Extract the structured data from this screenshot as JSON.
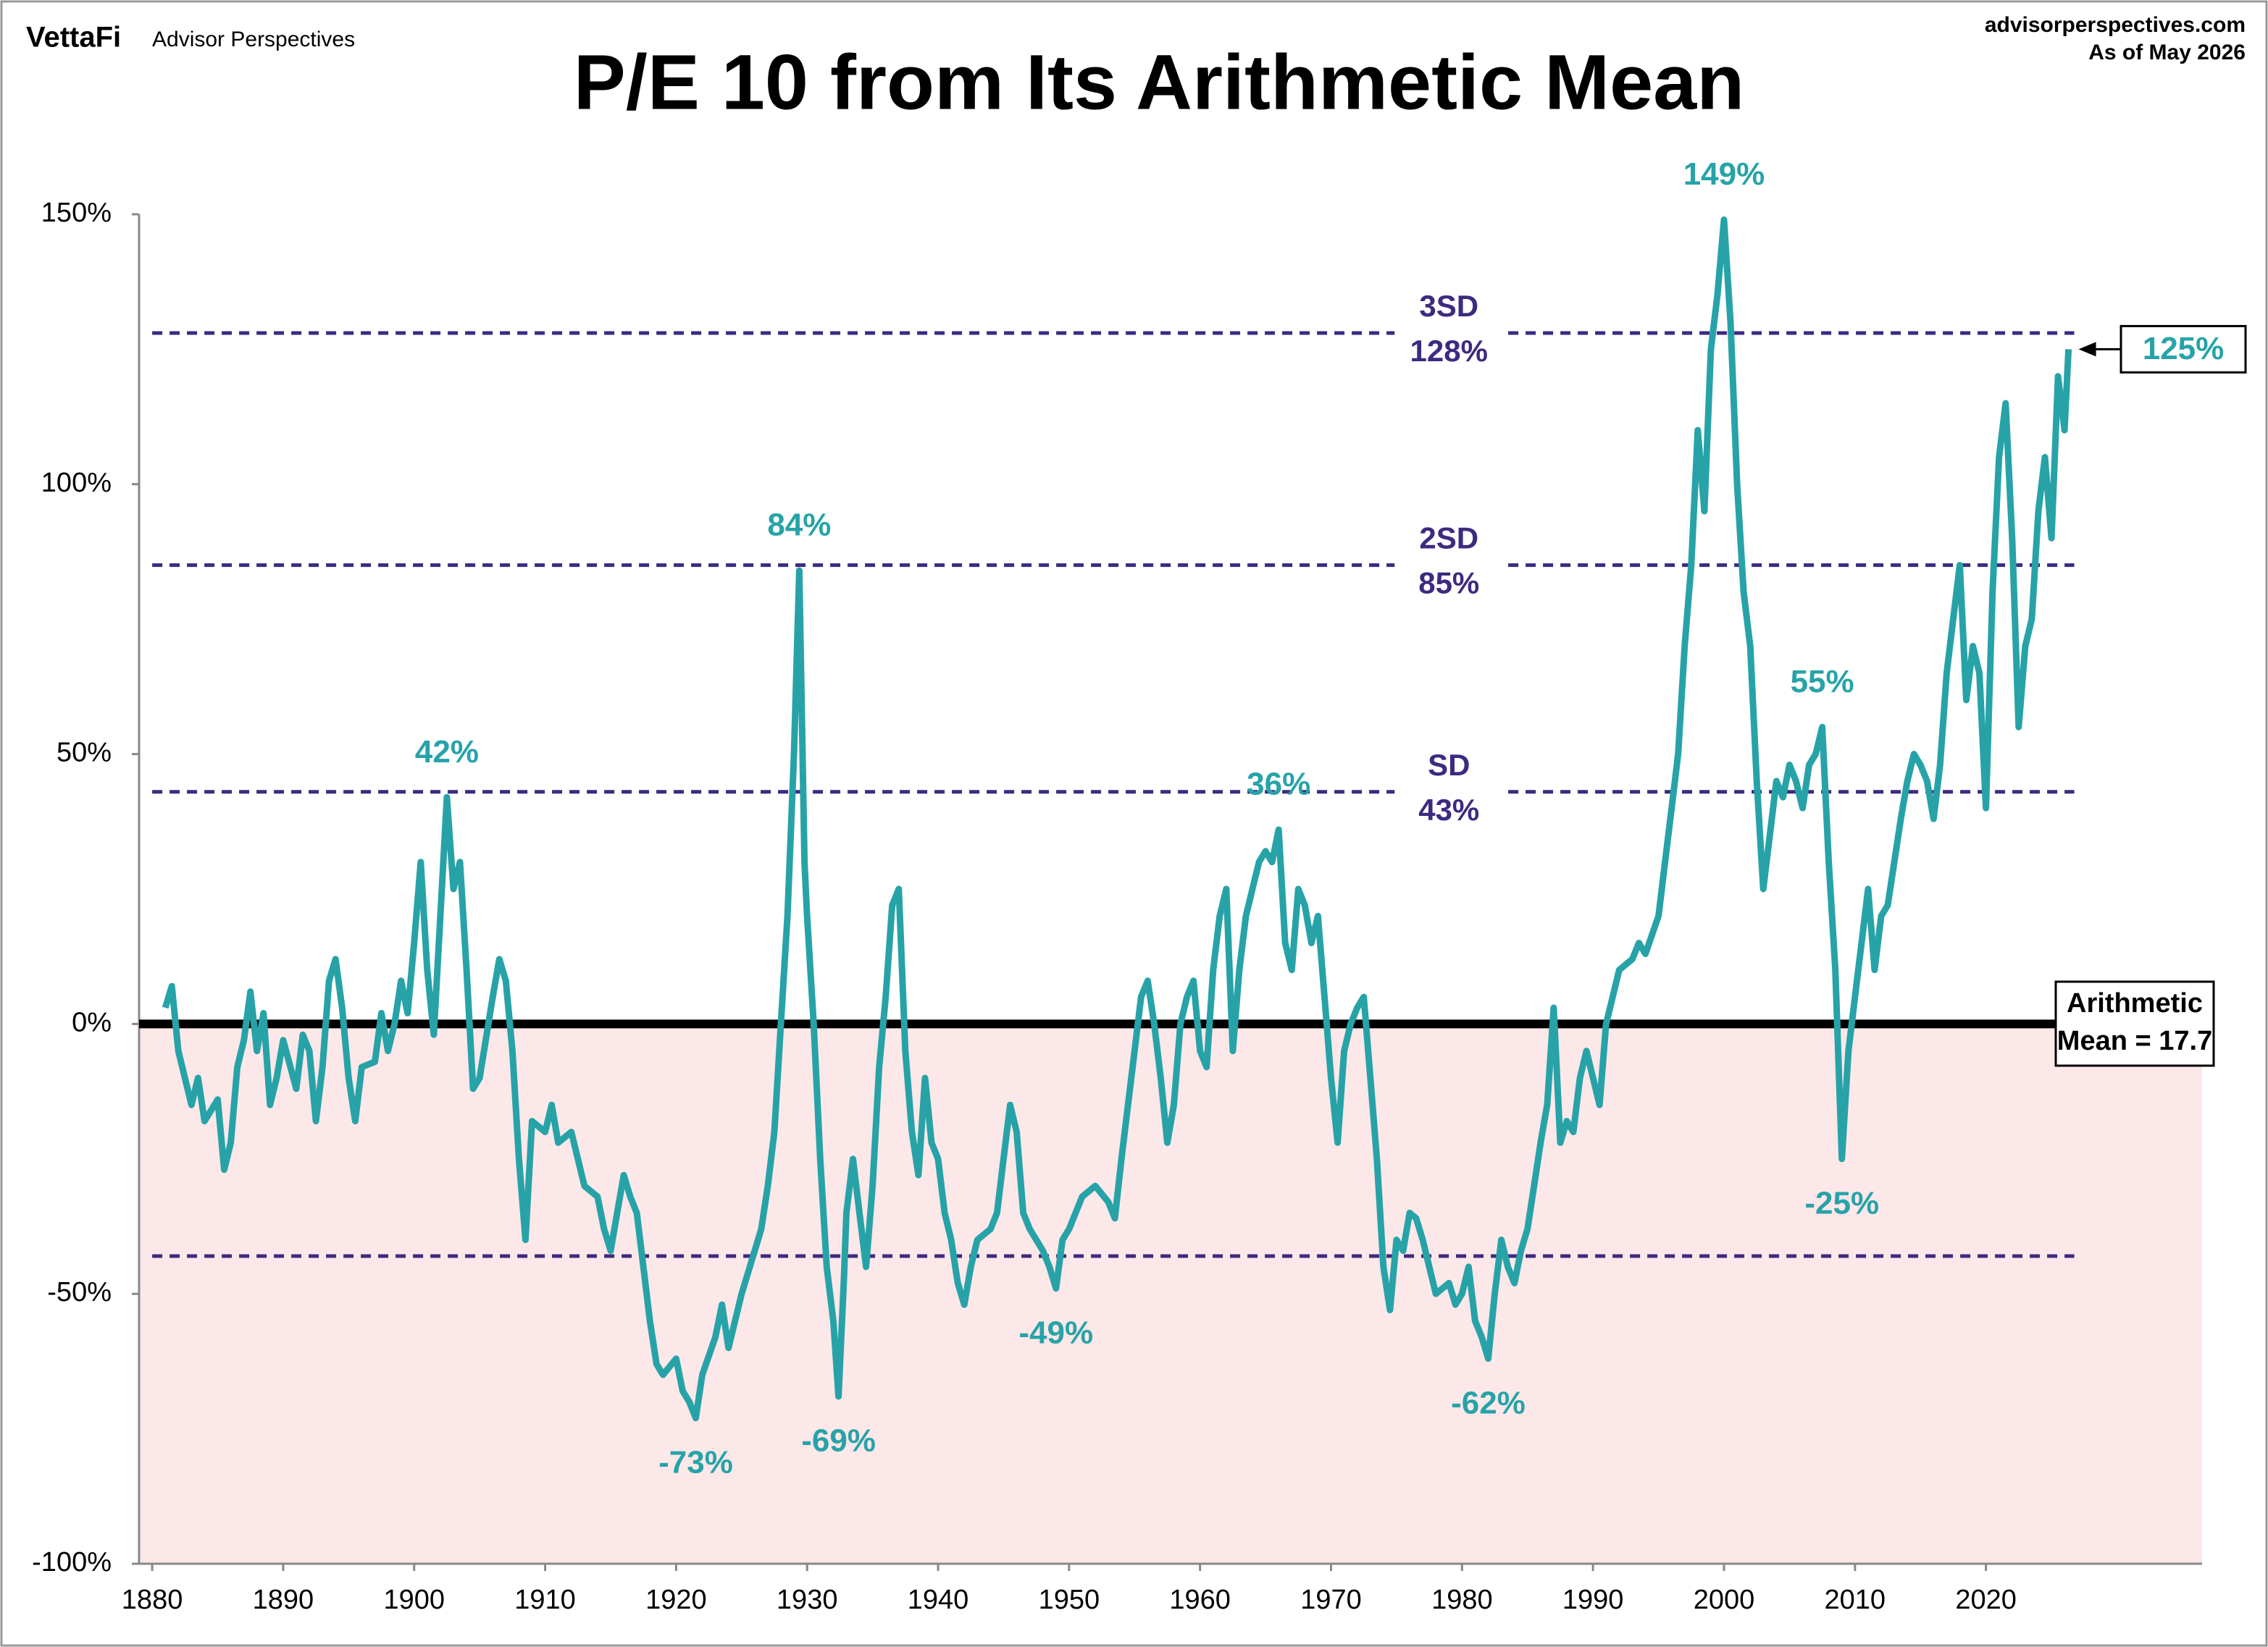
{
  "header": {
    "brand": "VettaFi",
    "brand_sub": "Advisor Perspectives",
    "site": "advisorperspectives.com",
    "as_of": "As of May 2026"
  },
  "chart_data": {
    "type": "line",
    "title": "P/E 10 from Its Arithmetic Mean",
    "xlim": [
      1879,
      2036.5
    ],
    "xticks": [
      1880,
      1890,
      1900,
      1910,
      1920,
      1930,
      1940,
      1950,
      1960,
      1970,
      1980,
      1990,
      2000,
      2010,
      2020
    ],
    "ylim": [
      -100,
      150
    ],
    "yticks": [
      {
        "value": -100,
        "label": "-100%"
      },
      {
        "value": -50,
        "label": "-50%"
      },
      {
        "value": 0,
        "label": "0%"
      },
      {
        "value": 50,
        "label": "50%"
      },
      {
        "value": 100,
        "label": "100%"
      },
      {
        "value": 150,
        "label": "150%"
      }
    ],
    "x": [
      1881,
      1881.5,
      1882,
      1883,
      1883.5,
      1884,
      1885,
      1885.5,
      1886,
      1886.5,
      1887,
      1887.5,
      1888,
      1888.5,
      1889,
      1889.5,
      1890,
      1891,
      1891.5,
      1892,
      1892.5,
      1893,
      1893.5,
      1894,
      1894.5,
      1895,
      1895.5,
      1896,
      1897,
      1897.5,
      1898,
      1898.5,
      1899,
      1899.5,
      1900,
      1900.5,
      1901,
      1901.5,
      1902,
      1902.5,
      1903,
      1903.5,
      1904,
      1904.5,
      1905,
      1906,
      1906.5,
      1907,
      1907.5,
      1908,
      1908.5,
      1909,
      1910,
      1910.5,
      1911,
      1912,
      1913,
      1914,
      1914.5,
      1915,
      1915.5,
      1916,
      1916.5,
      1917,
      1917.5,
      1918,
      1918.5,
      1919,
      1920,
      1920.5,
      1921,
      1921.5,
      1922,
      1923,
      1923.5,
      1924,
      1925,
      1926,
      1926.5,
      1927,
      1927.5,
      1928,
      1928.5,
      1929,
      1929.4,
      1929.8,
      1930,
      1930.5,
      1931,
      1931.5,
      1932,
      1932.4,
      1932.8,
      1933,
      1933.5,
      1934,
      1934.5,
      1935,
      1935.5,
      1936,
      1936.5,
      1937,
      1937.5,
      1938,
      1938.5,
      1939,
      1939.5,
      1940,
      1940.5,
      1941,
      1941.5,
      1942,
      1942.5,
      1943,
      1944,
      1944.5,
      1945,
      1945.5,
      1946,
      1946.5,
      1947,
      1948,
      1948.5,
      1949,
      1949.5,
      1950,
      1951,
      1952,
      1953,
      1953.5,
      1954,
      1954.5,
      1955,
      1955.5,
      1956,
      1956.5,
      1957,
      1957.5,
      1958,
      1958.5,
      1959,
      1959.5,
      1960,
      1960.5,
      1961,
      1961.5,
      1962,
      1962.5,
      1963,
      1963.5,
      1964,
      1964.5,
      1965,
      1965.5,
      1966,
      1966.5,
      1967,
      1967.5,
      1968,
      1968.5,
      1969,
      1969.5,
      1970,
      1970.5,
      1971,
      1971.5,
      1972,
      1972.5,
      1973,
      1973.5,
      1974,
      1974.5,
      1975,
      1975.5,
      1976,
      1976.5,
      1977,
      1977.5,
      1978,
      1979,
      1979.5,
      1980,
      1980.5,
      1981,
      1981.5,
      1982,
      1982.5,
      1983,
      1983.5,
      1984,
      1984.5,
      1985,
      1985.5,
      1986,
      1986.5,
      1987,
      1987.5,
      1988,
      1988.5,
      1989,
      1989.5,
      1990,
      1990.5,
      1991,
      1991.5,
      1992,
      1993,
      1993.5,
      1994,
      1995,
      1995.5,
      1996,
      1996.5,
      1997,
      1997.5,
      1998,
      1998.5,
      1999,
      1999.5,
      2000,
      2000.5,
      2001,
      2001.5,
      2002,
      2002.5,
      2003,
      2003.5,
      2004,
      2004.5,
      2005,
      2005.5,
      2006,
      2006.5,
      2007,
      2007.5,
      2008,
      2008.5,
      2009,
      2009.5,
      2010,
      2010.5,
      2011,
      2011.5,
      2012,
      2012.5,
      2013,
      2013.5,
      2014,
      2014.5,
      2015,
      2015.5,
      2016,
      2016.5,
      2017,
      2017.5,
      2018,
      2018.5,
      2019,
      2019.5,
      2020,
      2020.5,
      2021,
      2021.5,
      2022,
      2022.5,
      2023,
      2023.5,
      2024,
      2024.5,
      2025,
      2025.5,
      2026,
      2026.3
    ],
    "series": [
      {
        "color": "#27a3a8",
        "values": [
          3,
          7,
          -5,
          -15,
          -10,
          -18,
          -14,
          -27,
          -22,
          -8,
          -3,
          6,
          -5,
          2,
          -15,
          -10,
          -3,
          -12,
          -2,
          -5,
          -18,
          -8,
          8,
          12,
          3,
          -10,
          -18,
          -8,
          -7,
          2,
          -5,
          0,
          8,
          2,
          15,
          30,
          10,
          -2,
          20,
          42,
          25,
          30,
          10,
          -12,
          -10,
          5,
          12,
          8,
          -5,
          -25,
          -40,
          -18,
          -20,
          -15,
          -22,
          -20,
          -30,
          -32,
          -38,
          -42,
          -35,
          -28,
          -32,
          -35,
          -45,
          -55,
          -63,
          -65,
          -62,
          -68,
          -70,
          -73,
          -65,
          -58,
          -52,
          -60,
          -50,
          -42,
          -38,
          -30,
          -20,
          0,
          20,
          50,
          84,
          30,
          20,
          0,
          -25,
          -45,
          -55,
          -69,
          -48,
          -35,
          -25,
          -35,
          -45,
          -30,
          -8,
          5,
          22,
          25,
          -5,
          -20,
          -28,
          -10,
          -22,
          -25,
          -35,
          -40,
          -48,
          -52,
          -45,
          -40,
          -38,
          -35,
          -25,
          -15,
          -20,
          -35,
          -38,
          -42,
          -45,
          -49,
          -40,
          -38,
          -32,
          -30,
          -33,
          -36,
          -25,
          -15,
          -5,
          5,
          8,
          0,
          -10,
          -22,
          -15,
          0,
          5,
          8,
          -5,
          -8,
          10,
          20,
          25,
          -5,
          10,
          20,
          25,
          30,
          32,
          30,
          36,
          15,
          10,
          25,
          22,
          15,
          20,
          5,
          -10,
          -22,
          -5,
          0,
          3,
          5,
          -10,
          -25,
          -45,
          -53,
          -40,
          -42,
          -35,
          -36,
          -40,
          -45,
          -50,
          -48,
          -52,
          -50,
          -45,
          -55,
          -58,
          -62,
          -50,
          -40,
          -45,
          -48,
          -42,
          -38,
          -30,
          -22,
          -15,
          3,
          -22,
          -18,
          -20,
          -10,
          -5,
          -10,
          -15,
          0,
          5,
          10,
          12,
          15,
          13,
          20,
          30,
          40,
          50,
          70,
          85,
          110,
          95,
          125,
          135,
          149,
          130,
          100,
          80,
          70,
          45,
          25,
          35,
          45,
          42,
          48,
          45,
          40,
          48,
          50,
          55,
          30,
          10,
          -25,
          -5,
          5,
          15,
          25,
          10,
          20,
          22,
          30,
          38,
          45,
          50,
          48,
          45,
          38,
          48,
          65,
          75,
          85,
          60,
          70,
          65,
          40,
          80,
          105,
          115,
          90,
          55,
          70,
          75,
          95,
          105,
          90,
          120,
          110,
          125
        ]
      }
    ],
    "mean": 0,
    "mean_label": [
      "Arithmetic",
      "Mean = 17.7"
    ],
    "reference_lines": [
      {
        "name": "3SD",
        "value": 128,
        "label": "128%"
      },
      {
        "name": "2SD",
        "value": 85,
        "label": "85%"
      },
      {
        "name": "SD",
        "value": 43,
        "label": "43%"
      },
      {
        "value": -43
      }
    ],
    "annotations": [
      {
        "text": "42%",
        "x": 1902.5,
        "y": 42
      },
      {
        "text": "84%",
        "x": 1929.4,
        "y": 84
      },
      {
        "text": "36%",
        "x": 1966,
        "y": 36
      },
      {
        "text": "149%",
        "x": 2000,
        "y": 149
      },
      {
        "text": "55%",
        "x": 2007.5,
        "y": 55
      },
      {
        "text": "-73%",
        "x": 1921.5,
        "y": -73
      },
      {
        "text": "-69%",
        "x": 1932.4,
        "y": -69
      },
      {
        "text": "-49%",
        "x": 1949,
        "y": -49
      },
      {
        "text": "-62%",
        "x": 1982,
        "y": -62
      },
      {
        "text": "-25%",
        "x": 2009,
        "y": -25
      }
    ],
    "latest": {
      "text": "125%",
      "x": 2026.3,
      "y": 125
    }
  }
}
